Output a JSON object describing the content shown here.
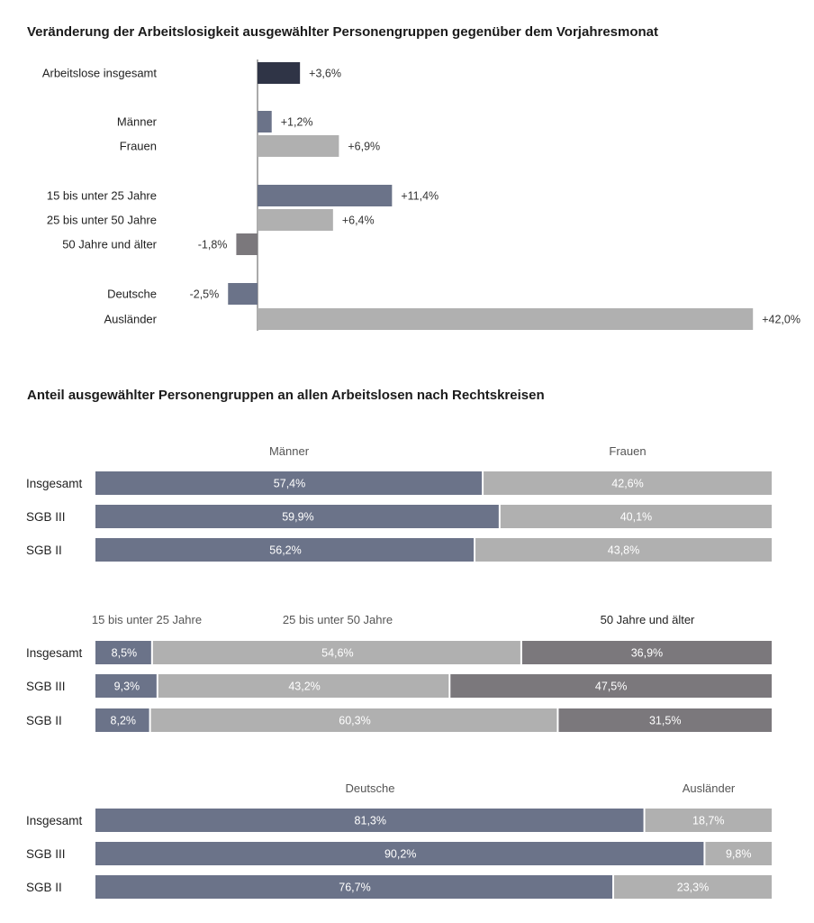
{
  "chart_data": [
    {
      "type": "bar",
      "orientation": "horizontal",
      "title": "Veränderung der Arbeitslosigkeit ausgewählter Personengruppen gegenüber dem Vorjahresmonat",
      "categories": [
        "Arbeitslose insgesamt",
        "Männer",
        "Frauen",
        "15 bis unter 25 Jahre",
        "25 bis unter 50 Jahre",
        "50 Jahre und älter",
        "Deutsche",
        "Ausländer"
      ],
      "values": [
        3.6,
        1.2,
        6.9,
        11.4,
        6.4,
        -1.8,
        -2.5,
        42.0
      ],
      "value_labels": [
        "+3,6%",
        "+1,2%",
        "+6,9%",
        "+11,4%",
        "+6,4%",
        "-1,8%",
        "-2,5%",
        "+42,0%"
      ],
      "colors": [
        "#2f3446",
        "#6b7389",
        "#b0b0b0",
        "#6b7389",
        "#b0b0b0",
        "#7b787c",
        "#6b7389",
        "#b0b0b0"
      ],
      "unit": "%"
    },
    {
      "type": "bar",
      "orientation": "horizontal",
      "stacked": "100%",
      "title": "Anteil ausgewählter Personengruppen an allen Arbeitslosen nach Rechtskreisen",
      "groups": [
        {
          "categories": [
            "Insgesamt",
            "SGB III",
            "SGB II"
          ],
          "series": [
            {
              "name": "Männer",
              "color": "#6b7389",
              "values": [
                57.4,
                59.9,
                56.2
              ],
              "labels": [
                "57,4%",
                "59,9%",
                "56,2%"
              ]
            },
            {
              "name": "Frauen",
              "color": "#b0b0b0",
              "values": [
                42.6,
                40.1,
                43.8
              ],
              "labels": [
                "42,6%",
                "40,1%",
                "43,8%"
              ]
            }
          ]
        },
        {
          "categories": [
            "Insgesamt",
            "SGB III",
            "SGB II"
          ],
          "series": [
            {
              "name": "15 bis unter 25 Jahre",
              "color": "#6b7389",
              "values": [
                8.5,
                9.3,
                8.2
              ],
              "labels": [
                "8,5%",
                "9,3%",
                "8,2%"
              ]
            },
            {
              "name": "25 bis unter 50 Jahre",
              "color": "#b0b0b0",
              "values": [
                54.6,
                43.2,
                60.3
              ],
              "labels": [
                "54,6%",
                "43,2%",
                "60,3%"
              ]
            },
            {
              "name": "50 Jahre und älter",
              "color": "#7b787c",
              "values": [
                36.9,
                47.5,
                31.5
              ],
              "labels": [
                "36,9%",
                "47,5%",
                "31,5%"
              ]
            }
          ]
        },
        {
          "categories": [
            "Insgesamt",
            "SGB III",
            "SGB II"
          ],
          "series": [
            {
              "name": "Deutsche",
              "color": "#6b7389",
              "values": [
                81.3,
                90.2,
                76.7
              ],
              "labels": [
                "81,3%",
                "90,2%",
                "76,7%"
              ]
            },
            {
              "name": "Ausländer",
              "color": "#b0b0b0",
              "values": [
                18.7,
                9.8,
                23.3
              ],
              "labels": [
                "18,7%",
                "9,8%",
                "23,3%"
              ]
            }
          ]
        }
      ]
    }
  ]
}
